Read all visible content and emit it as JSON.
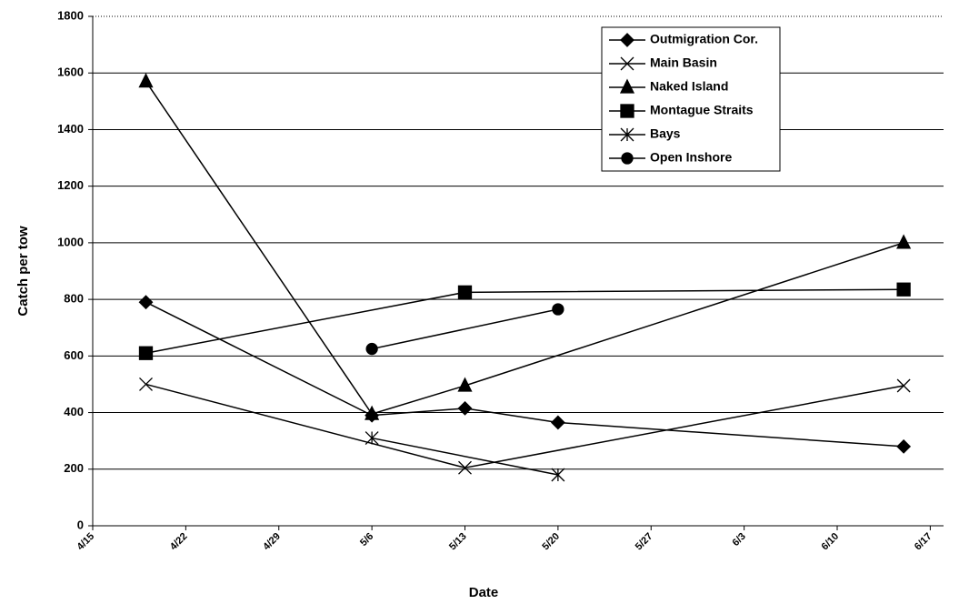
{
  "chart_data": {
    "type": "line",
    "x_label": "Date",
    "y_label": "Catch per tow",
    "xlim": [
      "4/15",
      "6/18"
    ],
    "xticks": [
      "4/15",
      "4/22",
      "4/29",
      "5/6",
      "5/13",
      "5/20",
      "5/27",
      "6/3",
      "6/10",
      "6/17"
    ],
    "ylim": [
      0,
      1800
    ],
    "yticks": [
      0,
      200,
      400,
      600,
      800,
      1000,
      1200,
      1400,
      1600,
      1800
    ],
    "grid": true,
    "legend": "upper right",
    "series": [
      {
        "name": "Outmigration Cor.",
        "color": "#000000",
        "marker": "diamond",
        "x": [
          "4/19",
          "5/6",
          "5/13",
          "5/20",
          "6/15"
        ],
        "values": [
          790,
          390,
          415,
          365,
          280
        ]
      },
      {
        "name": "Main Basin",
        "color": "#000000",
        "marker": "x",
        "x": [
          "4/19",
          "5/13",
          "6/15"
        ],
        "values": [
          500,
          205,
          495
        ]
      },
      {
        "name": "Naked Island",
        "color": "#000000",
        "marker": "triangle",
        "x": [
          "4/19",
          "5/6",
          "5/13",
          "6/15"
        ],
        "values": [
          1570,
          395,
          495,
          1000
        ]
      },
      {
        "name": "Montague Straits",
        "color": "#000000",
        "marker": "square",
        "x": [
          "4/19",
          "5/13",
          "6/15"
        ],
        "values": [
          610,
          825,
          835
        ]
      },
      {
        "name": "Bays",
        "color": "#000000",
        "marker": "asterisk",
        "x": [
          "5/6",
          "5/20"
        ],
        "values": [
          310,
          180
        ]
      },
      {
        "name": "Open Inshore",
        "color": "#000000",
        "marker": "circle",
        "x": [
          "5/6",
          "5/20"
        ],
        "values": [
          625,
          765
        ]
      }
    ]
  }
}
